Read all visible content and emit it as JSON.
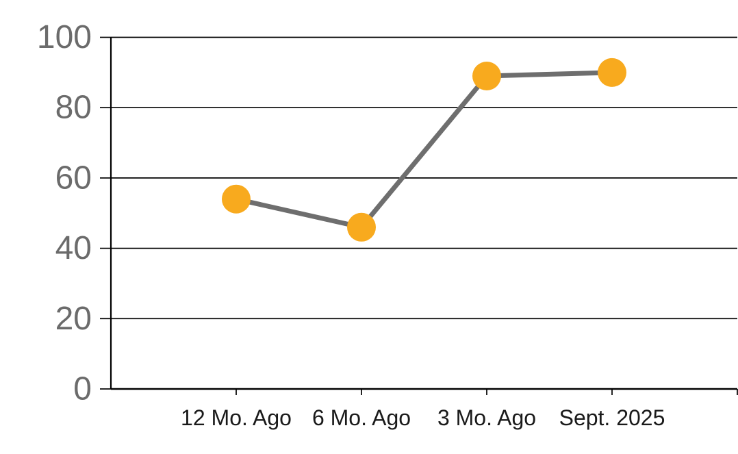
{
  "chart_data": {
    "type": "line",
    "categories": [
      "12 Mo. Ago",
      "6 Mo. Ago",
      "3 Mo. Ago",
      "Sept. 2025"
    ],
    "values": [
      54,
      46,
      89,
      90
    ],
    "yticks": [
      0,
      20,
      40,
      60,
      80,
      100
    ],
    "ylim": [
      0,
      100
    ],
    "grid": "horizontal-on",
    "legend": "none",
    "colors": {
      "marker": "#F8AA1E",
      "line": "#6E6E6E",
      "grid": "#000000",
      "axis": "#000000",
      "y_tick_label": "#6B6B6B",
      "x_tick_label": "#1A1A1A",
      "background": "#FFFFFF"
    }
  }
}
